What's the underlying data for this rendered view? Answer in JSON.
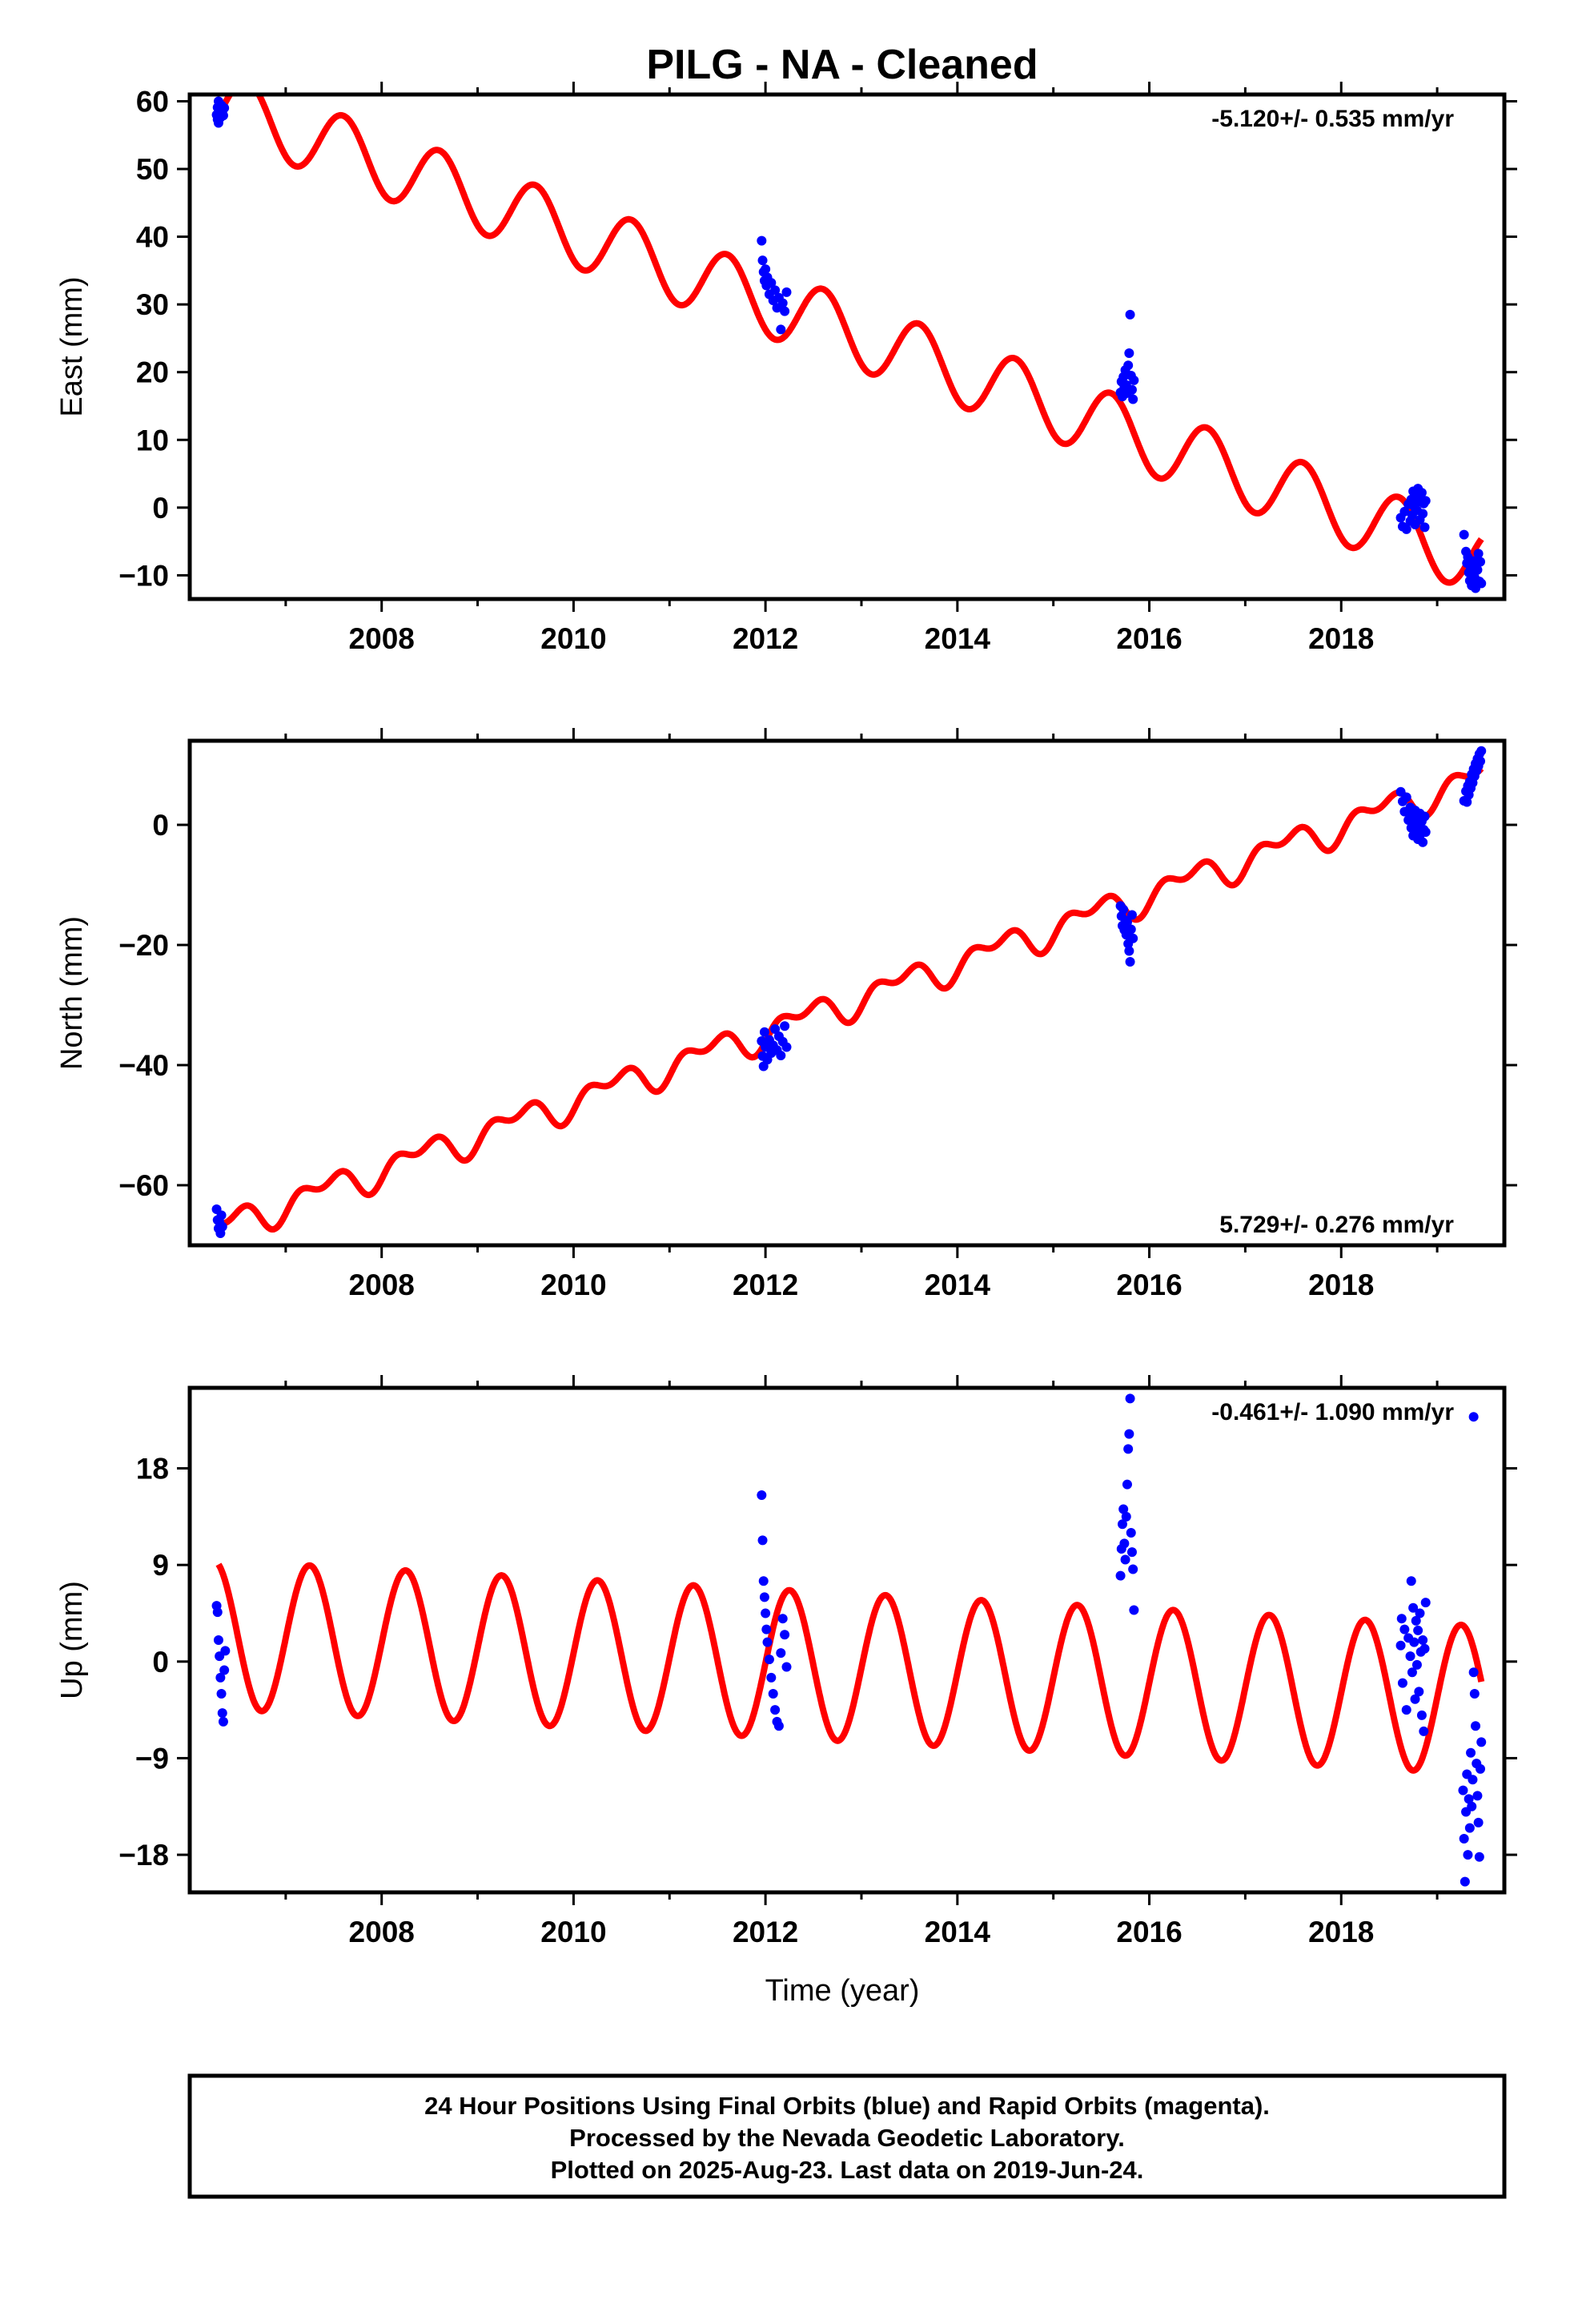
{
  "title": "PILG  - NA - Cleaned",
  "xlabel": "Time (year)",
  "colors": {
    "final_orbits": "#0000ff",
    "model": "#ff0000",
    "frame": "#000000"
  },
  "footer": [
    "24 Hour Positions Using Final Orbits (blue) and Rapid Orbits (magenta).",
    "Processed by the Nevada Geodetic Laboratory.",
    "Plotted on 2025-Aug-23. Last data on 2019-Jun-24."
  ],
  "chart_data": [
    {
      "type": "scatter",
      "ylabel": "East (mm)",
      "rate_label": "-5.120+/- 0.535 mm/yr",
      "rate_position": "top-right",
      "xlim": [
        2006.0,
        2019.7
      ],
      "ylim": [
        -13.5,
        61
      ],
      "xticks": [
        2008,
        2010,
        2012,
        2014,
        2016,
        2018
      ],
      "yticks": [
        -10,
        0,
        10,
        20,
        30,
        40,
        50,
        60
      ],
      "ytick_labels": [
        "−10",
        "0",
        "10",
        "20",
        "30",
        "40",
        "50",
        "60"
      ],
      "grid": false,
      "model": {
        "name": "",
        "rate_mm_per_yr": -5.12,
        "offset_2006_5": 58.5,
        "annual_amplitude": 5.0,
        "phase_year": 0.15
      },
      "observations": [
        {
          "x": 2006.28,
          "y": 58.0
        },
        {
          "x": 2006.29,
          "y": 59.1
        },
        {
          "x": 2006.29,
          "y": 57.3
        },
        {
          "x": 2006.3,
          "y": 60.0
        },
        {
          "x": 2006.3,
          "y": 56.8
        },
        {
          "x": 2006.31,
          "y": 58.5
        },
        {
          "x": 2006.32,
          "y": 57.6
        },
        {
          "x": 2006.33,
          "y": 59.4
        },
        {
          "x": 2006.34,
          "y": 58.2
        },
        {
          "x": 2006.35,
          "y": 57.9
        },
        {
          "x": 2006.36,
          "y": 59.0
        },
        {
          "x": 2011.96,
          "y": 39.4
        },
        {
          "x": 2011.97,
          "y": 36.5
        },
        {
          "x": 2011.98,
          "y": 34.8
        },
        {
          "x": 2011.99,
          "y": 33.5
        },
        {
          "x": 2012.0,
          "y": 35.2
        },
        {
          "x": 2012.01,
          "y": 32.8
        },
        {
          "x": 2012.02,
          "y": 34.0
        },
        {
          "x": 2012.04,
          "y": 31.5
        },
        {
          "x": 2012.06,
          "y": 33.2
        },
        {
          "x": 2012.08,
          "y": 30.6
        },
        {
          "x": 2012.1,
          "y": 32.1
        },
        {
          "x": 2012.12,
          "y": 29.5
        },
        {
          "x": 2012.14,
          "y": 31.0
        },
        {
          "x": 2012.16,
          "y": 26.3
        },
        {
          "x": 2012.18,
          "y": 30.2
        },
        {
          "x": 2012.2,
          "y": 29.0
        },
        {
          "x": 2012.22,
          "y": 31.8
        },
        {
          "x": 2015.7,
          "y": 17.0
        },
        {
          "x": 2015.71,
          "y": 18.6
        },
        {
          "x": 2015.72,
          "y": 16.4
        },
        {
          "x": 2015.73,
          "y": 19.3
        },
        {
          "x": 2015.74,
          "y": 17.8
        },
        {
          "x": 2015.75,
          "y": 20.3
        },
        {
          "x": 2015.76,
          "y": 18.1
        },
        {
          "x": 2015.77,
          "y": 16.9
        },
        {
          "x": 2015.78,
          "y": 21.0
        },
        {
          "x": 2015.79,
          "y": 22.8
        },
        {
          "x": 2015.8,
          "y": 28.5
        },
        {
          "x": 2015.81,
          "y": 19.5
        },
        {
          "x": 2015.82,
          "y": 17.4
        },
        {
          "x": 2015.83,
          "y": 16.0
        },
        {
          "x": 2015.84,
          "y": 18.8
        },
        {
          "x": 2018.62,
          "y": -1.5
        },
        {
          "x": 2018.64,
          "y": -2.8
        },
        {
          "x": 2018.66,
          "y": -0.6
        },
        {
          "x": 2018.68,
          "y": -3.2
        },
        {
          "x": 2018.7,
          "y": 0.5
        },
        {
          "x": 2018.72,
          "y": -2.0
        },
        {
          "x": 2018.73,
          "y": 1.2
        },
        {
          "x": 2018.74,
          "y": -1.1
        },
        {
          "x": 2018.75,
          "y": 2.4
        },
        {
          "x": 2018.76,
          "y": 0.2
        },
        {
          "x": 2018.77,
          "y": -2.5
        },
        {
          "x": 2018.78,
          "y": 1.8
        },
        {
          "x": 2018.79,
          "y": -0.4
        },
        {
          "x": 2018.8,
          "y": 2.8
        },
        {
          "x": 2018.81,
          "y": 0.9
        },
        {
          "x": 2018.82,
          "y": -1.8
        },
        {
          "x": 2018.83,
          "y": 1.5
        },
        {
          "x": 2018.84,
          "y": 2.2
        },
        {
          "x": 2018.85,
          "y": -0.9
        },
        {
          "x": 2018.86,
          "y": 0.6
        },
        {
          "x": 2018.87,
          "y": -2.9
        },
        {
          "x": 2018.88,
          "y": 1.0
        },
        {
          "x": 2019.28,
          "y": -4.0
        },
        {
          "x": 2019.3,
          "y": -6.5
        },
        {
          "x": 2019.31,
          "y": -8.2
        },
        {
          "x": 2019.32,
          "y": -7.3
        },
        {
          "x": 2019.33,
          "y": -9.6
        },
        {
          "x": 2019.34,
          "y": -10.8
        },
        {
          "x": 2019.35,
          "y": -8.9
        },
        {
          "x": 2019.36,
          "y": -11.5
        },
        {
          "x": 2019.37,
          "y": -9.8
        },
        {
          "x": 2019.38,
          "y": -7.9
        },
        {
          "x": 2019.39,
          "y": -10.3
        },
        {
          "x": 2019.4,
          "y": -11.9
        },
        {
          "x": 2019.41,
          "y": -8.6
        },
        {
          "x": 2019.42,
          "y": -9.2
        },
        {
          "x": 2019.43,
          "y": -6.8
        },
        {
          "x": 2019.44,
          "y": -10.9
        },
        {
          "x": 2019.45,
          "y": -8.0
        },
        {
          "x": 2019.46,
          "y": -11.2
        }
      ]
    },
    {
      "type": "scatter",
      "ylabel": "North (mm)",
      "rate_label": "5.729+/- 0.276 mm/yr",
      "rate_position": "bottom-right",
      "xlim": [
        2006.0,
        2019.7
      ],
      "ylim": [
        -70,
        14
      ],
      "xticks": [
        2008,
        2010,
        2012,
        2014,
        2016,
        2018
      ],
      "yticks": [
        -60,
        -40,
        -20,
        0
      ],
      "ytick_labels": [
        "−60",
        "−40",
        "−20",
        "0"
      ],
      "grid": false,
      "model": {
        "name": "",
        "rate_mm_per_yr": 5.729,
        "offset_2006_5": -66.0,
        "annual_amplitude": 2.0,
        "semiannual_amplitude": 1.5,
        "phase_year": 0.35
      },
      "observations": [
        {
          "x": 2006.28,
          "y": -64.0
        },
        {
          "x": 2006.29,
          "y": -65.8
        },
        {
          "x": 2006.3,
          "y": -67.2
        },
        {
          "x": 2006.31,
          "y": -66.1
        },
        {
          "x": 2006.32,
          "y": -68.0
        },
        {
          "x": 2006.33,
          "y": -65.0
        },
        {
          "x": 2006.34,
          "y": -66.9
        },
        {
          "x": 2011.96,
          "y": -36.0
        },
        {
          "x": 2011.97,
          "y": -38.5
        },
        {
          "x": 2011.98,
          "y": -40.2
        },
        {
          "x": 2011.99,
          "y": -34.5
        },
        {
          "x": 2012.0,
          "y": -37.0
        },
        {
          "x": 2012.02,
          "y": -39.1
        },
        {
          "x": 2012.04,
          "y": -35.8
        },
        {
          "x": 2012.06,
          "y": -38.0
        },
        {
          "x": 2012.08,
          "y": -36.7
        },
        {
          "x": 2012.1,
          "y": -34.0
        },
        {
          "x": 2012.12,
          "y": -37.5
        },
        {
          "x": 2012.14,
          "y": -35.2
        },
        {
          "x": 2012.16,
          "y": -38.4
        },
        {
          "x": 2012.18,
          "y": -36.1
        },
        {
          "x": 2012.2,
          "y": -33.5
        },
        {
          "x": 2012.22,
          "y": -37.0
        },
        {
          "x": 2015.7,
          "y": -13.5
        },
        {
          "x": 2015.71,
          "y": -15.2
        },
        {
          "x": 2015.72,
          "y": -16.8
        },
        {
          "x": 2015.73,
          "y": -14.1
        },
        {
          "x": 2015.74,
          "y": -17.5
        },
        {
          "x": 2015.75,
          "y": -15.9
        },
        {
          "x": 2015.76,
          "y": -18.3
        },
        {
          "x": 2015.77,
          "y": -16.2
        },
        {
          "x": 2015.78,
          "y": -19.8
        },
        {
          "x": 2015.79,
          "y": -21.0
        },
        {
          "x": 2015.8,
          "y": -22.8
        },
        {
          "x": 2015.81,
          "y": -17.4
        },
        {
          "x": 2015.82,
          "y": -15.0
        },
        {
          "x": 2015.83,
          "y": -18.9
        },
        {
          "x": 2018.62,
          "y": 5.5
        },
        {
          "x": 2018.64,
          "y": 3.9
        },
        {
          "x": 2018.66,
          "y": 2.2
        },
        {
          "x": 2018.68,
          "y": 4.6
        },
        {
          "x": 2018.7,
          "y": 0.8
        },
        {
          "x": 2018.72,
          "y": 2.9
        },
        {
          "x": 2018.73,
          "y": -0.5
        },
        {
          "x": 2018.74,
          "y": 1.6
        },
        {
          "x": 2018.75,
          "y": -1.8
        },
        {
          "x": 2018.76,
          "y": 0.3
        },
        {
          "x": 2018.77,
          "y": 2.4
        },
        {
          "x": 2018.78,
          "y": -1.0
        },
        {
          "x": 2018.79,
          "y": 1.1
        },
        {
          "x": 2018.8,
          "y": -2.4
        },
        {
          "x": 2018.81,
          "y": -0.2
        },
        {
          "x": 2018.82,
          "y": 1.9
        },
        {
          "x": 2018.83,
          "y": -1.5
        },
        {
          "x": 2018.84,
          "y": 0.6
        },
        {
          "x": 2018.85,
          "y": -2.9
        },
        {
          "x": 2018.86,
          "y": -0.8
        },
        {
          "x": 2018.87,
          "y": 1.4
        },
        {
          "x": 2018.88,
          "y": -1.2
        },
        {
          "x": 2019.28,
          "y": 4.0
        },
        {
          "x": 2019.3,
          "y": 5.6
        },
        {
          "x": 2019.31,
          "y": 3.8
        },
        {
          "x": 2019.32,
          "y": 6.5
        },
        {
          "x": 2019.33,
          "y": 5.0
        },
        {
          "x": 2019.34,
          "y": 7.2
        },
        {
          "x": 2019.35,
          "y": 6.1
        },
        {
          "x": 2019.36,
          "y": 8.4
        },
        {
          "x": 2019.37,
          "y": 7.0
        },
        {
          "x": 2019.38,
          "y": 9.3
        },
        {
          "x": 2019.39,
          "y": 8.1
        },
        {
          "x": 2019.4,
          "y": 10.2
        },
        {
          "x": 2019.41,
          "y": 9.0
        },
        {
          "x": 2019.42,
          "y": 11.0
        },
        {
          "x": 2019.43,
          "y": 9.8
        },
        {
          "x": 2019.44,
          "y": 11.8
        },
        {
          "x": 2019.45,
          "y": 10.6
        },
        {
          "x": 2019.46,
          "y": 12.3
        }
      ]
    },
    {
      "type": "scatter",
      "ylabel": "Up (mm)",
      "rate_label": "-0.461+/- 1.090 mm/yr",
      "rate_position": "top-right",
      "xlim": [
        2006.0,
        2019.7
      ],
      "ylim": [
        -21.5,
        25.5
      ],
      "xticks": [
        2008,
        2010,
        2012,
        2014,
        2016,
        2018
      ],
      "yticks": [
        -18,
        -9,
        0,
        9,
        18
      ],
      "ytick_labels": [
        "−18",
        "−9",
        "0",
        "9",
        "18"
      ],
      "grid": false,
      "model": {
        "name": "",
        "rate_mm_per_yr": -0.461,
        "offset_2006_5": 2.4,
        "annual_amplitude": 6.9,
        "phase_year": 0.5
      },
      "observations": [
        {
          "x": 2006.28,
          "y": 5.2
        },
        {
          "x": 2006.29,
          "y": 4.6
        },
        {
          "x": 2006.3,
          "y": 2.0
        },
        {
          "x": 2006.31,
          "y": 0.5
        },
        {
          "x": 2006.32,
          "y": -1.5
        },
        {
          "x": 2006.33,
          "y": -3.0
        },
        {
          "x": 2006.34,
          "y": -4.8
        },
        {
          "x": 2006.35,
          "y": -5.6
        },
        {
          "x": 2006.36,
          "y": -0.8
        },
        {
          "x": 2006.37,
          "y": 1.0
        },
        {
          "x": 2011.96,
          "y": 15.5
        },
        {
          "x": 2011.97,
          "y": 11.3
        },
        {
          "x": 2011.98,
          "y": 7.5
        },
        {
          "x": 2011.99,
          "y": 6.0
        },
        {
          "x": 2012.0,
          "y": 4.5
        },
        {
          "x": 2012.01,
          "y": 3.0
        },
        {
          "x": 2012.02,
          "y": 1.8
        },
        {
          "x": 2012.04,
          "y": 0.2
        },
        {
          "x": 2012.06,
          "y": -1.5
        },
        {
          "x": 2012.08,
          "y": -3.0
        },
        {
          "x": 2012.1,
          "y": -4.5
        },
        {
          "x": 2012.12,
          "y": -5.6
        },
        {
          "x": 2012.14,
          "y": -6.0
        },
        {
          "x": 2012.16,
          "y": 0.8
        },
        {
          "x": 2012.18,
          "y": 4.0
        },
        {
          "x": 2012.2,
          "y": 2.5
        },
        {
          "x": 2012.22,
          "y": -0.5
        },
        {
          "x": 2015.7,
          "y": 8.0
        },
        {
          "x": 2015.71,
          "y": 10.5
        },
        {
          "x": 2015.72,
          "y": 12.8
        },
        {
          "x": 2015.73,
          "y": 14.2
        },
        {
          "x": 2015.74,
          "y": 11.0
        },
        {
          "x": 2015.75,
          "y": 9.5
        },
        {
          "x": 2015.76,
          "y": 13.5
        },
        {
          "x": 2015.77,
          "y": 16.5
        },
        {
          "x": 2015.78,
          "y": 19.8
        },
        {
          "x": 2015.79,
          "y": 21.2
        },
        {
          "x": 2015.8,
          "y": 24.5
        },
        {
          "x": 2015.81,
          "y": 12.0
        },
        {
          "x": 2015.82,
          "y": 10.2
        },
        {
          "x": 2015.83,
          "y": 8.6
        },
        {
          "x": 2015.84,
          "y": 4.8
        },
        {
          "x": 2018.62,
          "y": 1.5
        },
        {
          "x": 2018.63,
          "y": 4.0
        },
        {
          "x": 2018.64,
          "y": -2.0
        },
        {
          "x": 2018.66,
          "y": 3.0
        },
        {
          "x": 2018.68,
          "y": -4.5
        },
        {
          "x": 2018.7,
          "y": 2.2
        },
        {
          "x": 2018.72,
          "y": 0.5
        },
        {
          "x": 2018.73,
          "y": 7.5
        },
        {
          "x": 2018.74,
          "y": -1.0
        },
        {
          "x": 2018.75,
          "y": 5.0
        },
        {
          "x": 2018.76,
          "y": 1.8
        },
        {
          "x": 2018.77,
          "y": -3.5
        },
        {
          "x": 2018.78,
          "y": 3.8
        },
        {
          "x": 2018.79,
          "y": -0.3
        },
        {
          "x": 2018.8,
          "y": 2.9
        },
        {
          "x": 2018.81,
          "y": -2.8
        },
        {
          "x": 2018.82,
          "y": 4.5
        },
        {
          "x": 2018.83,
          "y": 0.9
        },
        {
          "x": 2018.84,
          "y": -5.0
        },
        {
          "x": 2018.85,
          "y": 2.0
        },
        {
          "x": 2018.86,
          "y": -6.5
        },
        {
          "x": 2018.87,
          "y": 1.2
        },
        {
          "x": 2018.88,
          "y": 5.5
        },
        {
          "x": 2019.27,
          "y": -12.0
        },
        {
          "x": 2019.28,
          "y": -16.5
        },
        {
          "x": 2019.29,
          "y": -20.5
        },
        {
          "x": 2019.3,
          "y": -14.0
        },
        {
          "x": 2019.31,
          "y": -10.5
        },
        {
          "x": 2019.32,
          "y": -18.0
        },
        {
          "x": 2019.33,
          "y": -12.8
        },
        {
          "x": 2019.34,
          "y": -15.5
        },
        {
          "x": 2019.35,
          "y": -8.5
        },
        {
          "x": 2019.36,
          "y": -13.5
        },
        {
          "x": 2019.37,
          "y": -11.0
        },
        {
          "x": 2019.38,
          "y": -1.0
        },
        {
          "x": 2019.39,
          "y": -3.0
        },
        {
          "x": 2019.4,
          "y": -6.0
        },
        {
          "x": 2019.41,
          "y": -9.5
        },
        {
          "x": 2019.42,
          "y": -12.5
        },
        {
          "x": 2019.43,
          "y": -15.0
        },
        {
          "x": 2019.44,
          "y": -18.2
        },
        {
          "x": 2019.45,
          "y": -10.0
        },
        {
          "x": 2019.46,
          "y": -7.5
        },
        {
          "x": 2019.38,
          "y": 22.8
        }
      ]
    }
  ]
}
